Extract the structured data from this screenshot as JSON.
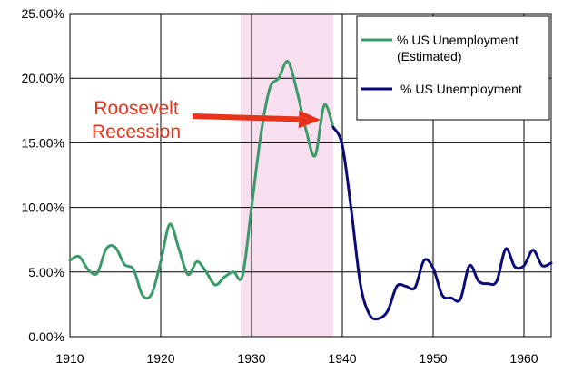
{
  "chart_data": {
    "type": "line",
    "title": "",
    "xlabel": "",
    "ylabel": "",
    "xlim": [
      1910,
      1963
    ],
    "ylim": [
      0,
      25
    ],
    "x_ticks": [
      1910,
      1920,
      1930,
      1940,
      1950,
      1960
    ],
    "x_tick_labels": [
      "1910",
      "1920",
      "1930",
      "1940",
      "1950",
      "1960"
    ],
    "y_ticks": [
      0,
      5,
      10,
      15,
      20,
      25
    ],
    "y_tick_labels": [
      "0.00%",
      "5.00%",
      "10.00%",
      "15.00%",
      "20.00%",
      "25.00%"
    ],
    "grid": true,
    "legend_position": "top-right",
    "shaded_region": {
      "x_start": 1928.8,
      "x_end": 1939,
      "color": "#f8dff0"
    },
    "annotation": {
      "lines": [
        "Roosevelt",
        "Recession"
      ],
      "color": "#e8331c",
      "arrow_target": {
        "x": 1938,
        "y": 17.2
      }
    },
    "series": [
      {
        "name": "% US Unemployment",
        "sub": "(Estimated)",
        "color": "#3a9a6a",
        "x": [
          1910,
          1911,
          1912,
          1913,
          1914,
          1915,
          1916,
          1917,
          1918,
          1919,
          1920,
          1921,
          1922,
          1923,
          1924,
          1925,
          1926,
          1927,
          1928,
          1929,
          1930,
          1931,
          1932,
          1933,
          1934,
          1935,
          1936,
          1937,
          1938,
          1939
        ],
        "y": [
          5.9,
          6.2,
          5.2,
          4.9,
          6.8,
          6.9,
          5.6,
          5.2,
          3.2,
          3.3,
          5.8,
          8.7,
          6.8,
          4.8,
          5.8,
          5.0,
          4.0,
          4.6,
          5.0,
          4.7,
          10.0,
          15.5,
          19.2,
          20.0,
          21.3,
          19.0,
          16.0,
          14.0,
          17.9,
          16.2
        ]
      },
      {
        "name": "% US Unemployment",
        "color": "#0b0b78",
        "x": [
          1939,
          1940,
          1941,
          1942,
          1943,
          1944,
          1945,
          1946,
          1947,
          1948,
          1949,
          1950,
          1951,
          1952,
          1953,
          1954,
          1955,
          1956,
          1957,
          1958,
          1959,
          1960,
          1961,
          1962,
          1963
        ],
        "y": [
          16.2,
          14.8,
          9.7,
          4.0,
          1.7,
          1.4,
          2.0,
          3.9,
          3.9,
          3.8,
          5.9,
          5.3,
          3.2,
          3.0,
          2.9,
          5.5,
          4.3,
          4.1,
          4.3,
          6.8,
          5.4,
          5.5,
          6.7,
          5.5,
          5.7
        ]
      }
    ]
  }
}
